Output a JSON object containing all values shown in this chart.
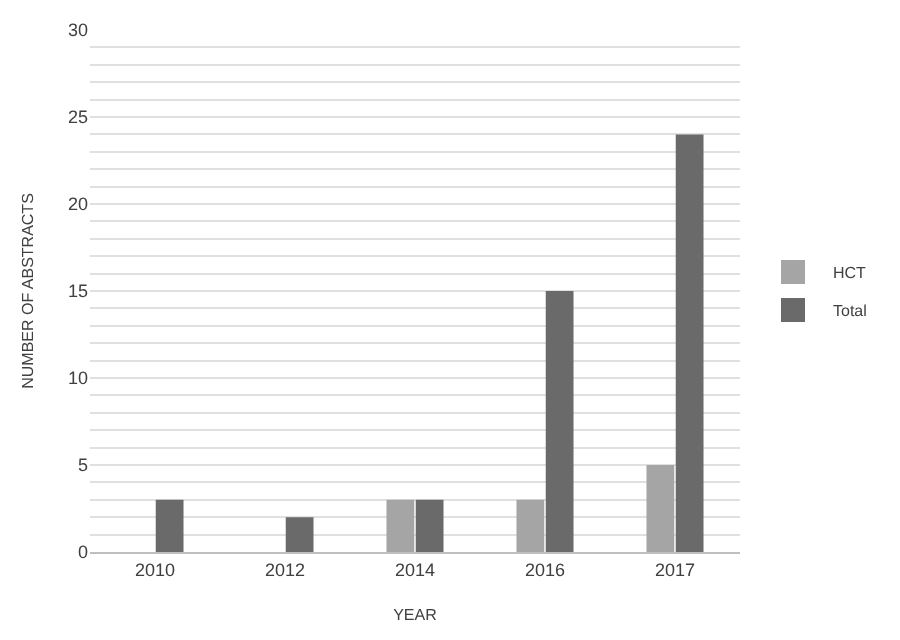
{
  "chart_data": {
    "type": "bar",
    "xlabel": "YEAR",
    "ylabel": "NUMBER OF ABSTRACTS",
    "categories": [
      "2010",
      "2012",
      "2014",
      "2016",
      "2017"
    ],
    "series": [
      {
        "name": "HCT",
        "color": "#a5a5a5",
        "values": [
          0,
          0,
          3,
          3,
          5
        ]
      },
      {
        "name": "Total",
        "color": "#6a6a6a",
        "values": [
          3,
          2,
          3,
          15,
          24
        ]
      }
    ],
    "ylim": [
      0,
      30
    ],
    "yticks": [
      0,
      {
        "value": 1,
        "label": null
      },
      {
        "value": 2,
        "label": null
      },
      {
        "value": 3,
        "label": null
      },
      {
        "value": 4,
        "label": null
      },
      5,
      {
        "value": 6,
        "label": null
      },
      {
        "value": 7,
        "label": null
      },
      {
        "value": 8,
        "label": null
      },
      {
        "value": 9,
        "label": null
      },
      10,
      {
        "value": 11,
        "label": null
      },
      {
        "value": 12,
        "label": null
      },
      {
        "value": 13,
        "label": null
      },
      {
        "value": 14,
        "label": null
      },
      15,
      {
        "value": 16,
        "label": null
      },
      {
        "value": 17,
        "label": null
      },
      {
        "value": 18,
        "label": null
      },
      {
        "value": 19,
        "label": null
      },
      20,
      {
        "value": 21,
        "label": null
      },
      {
        "value": 22,
        "label": null
      },
      {
        "value": 23,
        "label": null
      },
      {
        "value": 24,
        "label": null
      },
      25,
      {
        "value": 26,
        "label": null
      },
      {
        "value": 27,
        "label": null
      },
      {
        "value": 28,
        "label": null
      },
      {
        "value": 29,
        "label": null
      },
      30
    ],
    "grid": "y",
    "legend": "right"
  }
}
